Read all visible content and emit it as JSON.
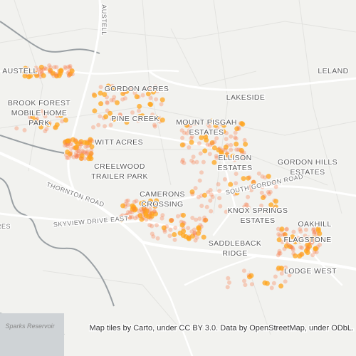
{
  "places": [
    [
      "AUSTELL"
    ],
    [
      "BROOK FOREST",
      "MOBILE HOME",
      "PARK"
    ],
    [
      "GORDON ACRES"
    ],
    [
      "LAKESIDE"
    ],
    [
      "LELAND"
    ],
    [
      "PINE CREEK"
    ],
    [
      "MOUNT PISGAH",
      "ESTATES"
    ],
    [
      "WITT ACRES"
    ],
    [
      "CREELWOOD",
      "TRAILER PARK"
    ],
    [
      "ELLISON",
      "ESTATES"
    ],
    [
      "GORDON HILLS",
      "ESTATES"
    ],
    [
      "CAMERONS",
      "CROSSING"
    ],
    [
      "KNOX SPRINGS",
      "ESTATES"
    ],
    [
      "OAKHILL"
    ],
    [
      "FLAGSTONE"
    ],
    [
      "SADDLEBACK",
      "RIDGE"
    ],
    [
      "LODGE WEST"
    ]
  ],
  "roads": [
    "THORNTON ROAD",
    "SKYVIEW DRIVE EAST",
    "SOUTH GORDON ROAD",
    "AUSTELL",
    "RES"
  ],
  "water": "Sparks Reservoir",
  "attribution": "Map tiles by Carto, under CC BY 3.0. Data by OpenStreetMap, under ODbL."
}
